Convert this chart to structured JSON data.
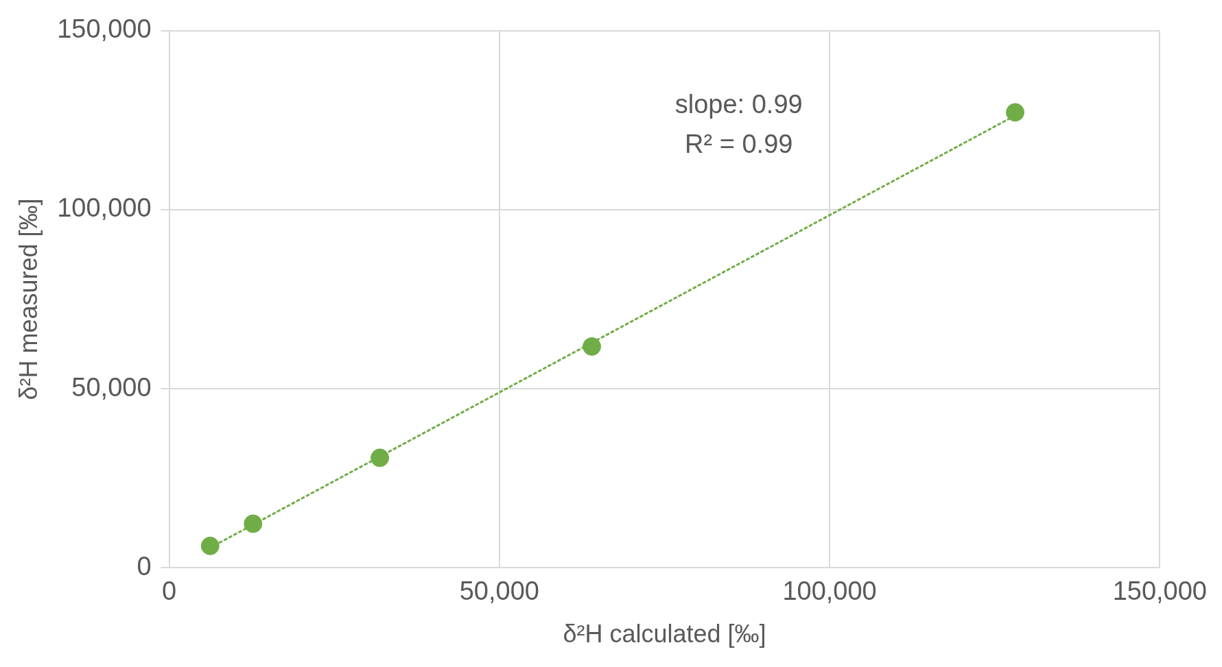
{
  "chart_data": {
    "type": "scatter",
    "xlabel": "δ²H calculated [‰]",
    "ylabel": "δ²H measured [‰]",
    "xlim": [
      0,
      150000
    ],
    "ylim": [
      0,
      150000
    ],
    "xticks": [
      0,
      {
        "value": 50000,
        "label": "50,000"
      },
      {
        "value": 100000,
        "label": "100,000"
      },
      {
        "value": 150000,
        "label": "150,000"
      }
    ],
    "yticks": [
      0,
      {
        "value": 50000,
        "label": "50,000"
      },
      {
        "value": 100000,
        "label": "100,000"
      },
      {
        "value": 150000,
        "label": "150,000"
      }
    ],
    "grid": true,
    "marker": "circle",
    "annotations": [
      "slope: 0.99",
      "R² = 0.99"
    ],
    "series": [
      {
        "type": "line",
        "color": "#70ad47",
        "line_style": "dotted",
        "marker": "none",
        "x": [
          6200,
          128100
        ],
        "values": [
          5600,
          126300
        ]
      },
      {
        "type": "scatter",
        "color": "#70ad47",
        "x": [
          6200,
          12700,
          31900,
          64000,
          128100
        ],
        "values": [
          6100,
          12300,
          30700,
          61800,
          127200
        ]
      }
    ]
  }
}
